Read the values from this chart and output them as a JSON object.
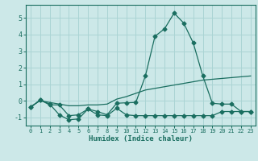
{
  "xlabel": "Humidex (Indice chaleur)",
  "x": [
    0,
    1,
    2,
    3,
    4,
    5,
    6,
    7,
    8,
    9,
    10,
    11,
    12,
    13,
    14,
    15,
    16,
    17,
    18,
    19,
    20,
    21,
    22,
    23
  ],
  "line1": [
    -0.4,
    0.05,
    -0.25,
    -0.25,
    -0.9,
    -0.85,
    -0.5,
    -0.65,
    -0.85,
    -0.15,
    -0.12,
    -0.1,
    1.5,
    3.9,
    4.35,
    5.3,
    4.7,
    3.5,
    1.5,
    -0.15,
    -0.2,
    -0.2,
    -0.65,
    -0.65
  ],
  "line2": [
    -0.4,
    0.05,
    -0.2,
    -0.85,
    -1.15,
    -1.1,
    -0.5,
    -0.85,
    -0.9,
    -0.45,
    -0.85,
    -0.9,
    -0.9,
    -0.9,
    -0.9,
    -0.9,
    -0.9,
    -0.9,
    -0.9,
    -0.9,
    -0.65,
    -0.65,
    -0.65,
    -0.65
  ],
  "line3": [
    -0.35,
    0.0,
    -0.1,
    -0.2,
    -0.3,
    -0.3,
    -0.25,
    -0.25,
    -0.2,
    0.1,
    0.25,
    0.45,
    0.65,
    0.75,
    0.85,
    0.95,
    1.05,
    1.15,
    1.25,
    1.3,
    1.35,
    1.4,
    1.45,
    1.5
  ],
  "bg_color": "#cce8e8",
  "grid_color": "#aad4d4",
  "line_color": "#1a6e60",
  "ylim": [
    -1.5,
    5.8
  ],
  "xlim": [
    -0.5,
    23.5
  ],
  "yticks": [
    -1,
    0,
    1,
    2,
    3,
    4,
    5
  ],
  "xtick_labels": [
    "0",
    "1",
    "2",
    "3",
    "4",
    "5",
    "6",
    "7",
    "8",
    "9",
    "10",
    "11",
    "12",
    "13",
    "14",
    "15",
    "16",
    "17",
    "18",
    "19",
    "20",
    "21",
    "22",
    "23"
  ],
  "marker": "D",
  "markersize": 2.5,
  "linewidth": 0.9
}
